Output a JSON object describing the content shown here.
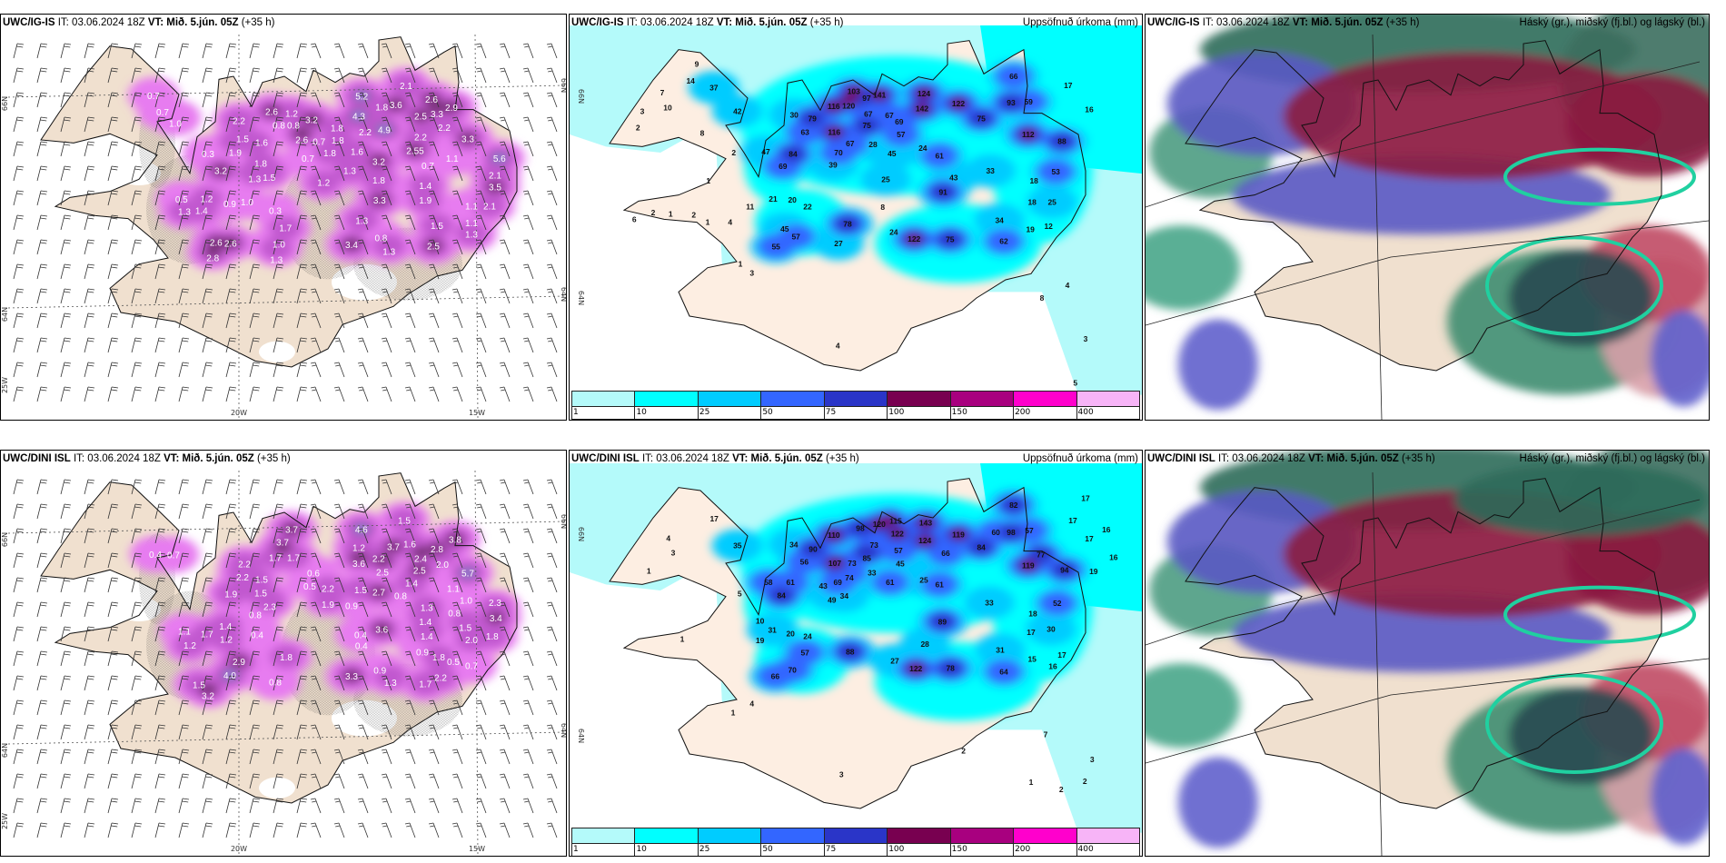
{
  "common": {
    "it_label": "IT:",
    "it_value": "03.06.2024 18Z",
    "vt_label": "VT:",
    "vt_value": "Mið. 5.jún. 05Z",
    "lead": "(+35 h)"
  },
  "panels": [
    {
      "model": "UWC/IG-IS",
      "subtitle": ""
    },
    {
      "model": "UWC/IG-IS",
      "subtitle": "Uppsöfnuð úrkoma (mm)"
    },
    {
      "model": "UWC/IG-IS",
      "subtitle": "Háský (gr.), miðský (fj.bl.) og lágský (bl.)"
    },
    {
      "model": "UWC/DINI ISL",
      "subtitle": ""
    },
    {
      "model": "UWC/DINI ISL",
      "subtitle": "Uppsöfnuð úrkoma (mm)"
    },
    {
      "model": "UWC/DINI ISL",
      "subtitle": "Háský (gr.), miðský (fj.bl.) og lágský (bl.)"
    }
  ],
  "graticule": {
    "lat_north": "66N",
    "lat_south": "64N",
    "lon_west": "25W",
    "lon_mid": "20W",
    "lon_east": "15W"
  },
  "colorbar": {
    "labels": [
      "1",
      "10",
      "25",
      "50",
      "75",
      "100",
      "150",
      "200",
      "400"
    ],
    "colors": [
      "#b4fafa",
      "#00ffff",
      "#00ccff",
      "#3366ff",
      "#2a35c8",
      "#780050",
      "#a8007f",
      "#ff00cc",
      "#f7b4f7"
    ]
  },
  "wind_precip_top_values": [
    0.7,
    0.7,
    1.0,
    2.2,
    1.5,
    1.9,
    1.6,
    0.8,
    0.8,
    2.6,
    1.2,
    3.2,
    2.6,
    0.7,
    0.7,
    1.8,
    1.8,
    1.8,
    4.3,
    5.2,
    1.8,
    3.6,
    2.1,
    2.6,
    3.3,
    2.9,
    2.5,
    2.2,
    4.9,
    2.2,
    2.2,
    1.6,
    2.55,
    0.7,
    1.1,
    3.2,
    1.3,
    1.8,
    1.2,
    1.4,
    3.3,
    1.9,
    3.3,
    5.6,
    2.1,
    3.5,
    1.1,
    2.1,
    1.1,
    1.3,
    1.3,
    1.5,
    3.4,
    0.8,
    1.3,
    2.5,
    0.3,
    3.2,
    1.8,
    1.3,
    1.5,
    1.2,
    0.9,
    1.0,
    0.5,
    1.3,
    1.4,
    0.3,
    1.7,
    1.0,
    1.3,
    2.6,
    2.6,
    2.8
  ],
  "wind_precip_bottom_values": [
    0.4,
    0.7,
    2.2,
    2.2,
    1.5,
    1.5,
    2.3,
    0.8,
    1.7,
    1.7,
    3.7,
    3.7,
    0.6,
    0.5,
    2.2,
    1.9,
    1.9,
    1.2,
    3.6,
    2.2,
    2.5,
    4.6,
    3.7,
    1.6,
    1.5,
    2.8,
    3.8,
    2.4,
    2.0,
    2.5,
    1.4,
    1.5,
    2.7,
    0.8,
    0.9,
    1.1,
    1.3,
    1.4,
    1.0,
    0.8,
    3.6,
    0.4,
    1.4,
    0.9,
    1.8,
    0.5,
    0.7,
    2.0,
    1.8,
    3.4,
    2.3,
    1.1,
    1.7,
    1.2,
    1.2,
    1.4,
    0.4,
    1.8,
    2.9,
    4.0,
    1.5,
    3.2,
    0.8,
    3.3,
    0.9,
    1.3,
    1.7,
    2.2,
    5.7,
    1.5,
    0.4
  ],
  "accum_precip_top_values": [
    9,
    14,
    37,
    7,
    3,
    10,
    42,
    2,
    8,
    2,
    30,
    79,
    103,
    120,
    97,
    116,
    141,
    124,
    142,
    122,
    66,
    93,
    59,
    17,
    16,
    67,
    67,
    75,
    69,
    75,
    63,
    116,
    67,
    28,
    57,
    112,
    88,
    47,
    84,
    70,
    45,
    24,
    61,
    69,
    39,
    33,
    53,
    25,
    43,
    18,
    1,
    91,
    21,
    20,
    22,
    11,
    8,
    18,
    25,
    6,
    2,
    1,
    2,
    1,
    4,
    45,
    78,
    34,
    19,
    12,
    57,
    24,
    122,
    75,
    62,
    55,
    27,
    1,
    3,
    4,
    8,
    3,
    4,
    5
  ],
  "accum_precip_bottom_values": [
    17,
    4,
    3,
    1,
    35,
    34,
    90,
    110,
    98,
    120,
    115,
    122,
    143,
    124,
    119,
    82,
    60,
    98,
    57,
    17,
    17,
    16,
    17,
    16,
    19,
    73,
    85,
    57,
    66,
    84,
    77,
    119,
    94,
    56,
    107,
    73,
    74,
    33,
    45,
    25,
    61,
    58,
    61,
    84,
    43,
    69,
    49,
    34,
    61,
    33,
    52,
    5,
    10,
    18,
    31,
    20,
    24,
    19,
    89,
    17,
    30,
    1,
    28,
    31,
    57,
    88,
    27,
    15,
    17,
    16,
    70,
    122,
    78,
    64,
    66,
    4,
    1,
    2,
    7,
    3,
    2,
    1,
    2,
    3
  ]
}
